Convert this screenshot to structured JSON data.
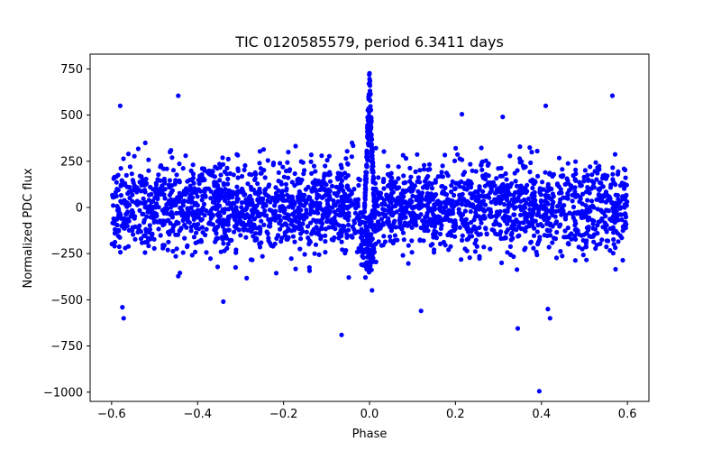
{
  "chart_data": {
    "type": "scatter",
    "title": "TIC 0120585579, period 6.3411 days",
    "xlabel": "Phase",
    "ylabel": "Normalized PDC flux",
    "xlim": [
      -0.65,
      0.65
    ],
    "ylim": [
      -1050,
      830
    ],
    "xticks": [
      -0.6,
      -0.4,
      -0.2,
      0.0,
      0.2,
      0.4,
      0.6
    ],
    "xtick_labels": [
      "−0.6",
      "−0.4",
      "−0.2",
      "0.0",
      "0.2",
      "0.4",
      "0.6"
    ],
    "yticks": [
      -1000,
      -750,
      -500,
      -250,
      0,
      250,
      500,
      750
    ],
    "ytick_labels": [
      "−1000",
      "−750",
      "−500",
      "−250",
      "0",
      "250",
      "500",
      "750"
    ],
    "grid": false,
    "series": [
      {
        "name": "Normalized PDC flux",
        "color": "#0000ff",
        "marker": "circle",
        "phase_range": [
          -0.6,
          0.6
        ],
        "bulk_sd": 120,
        "bulk_range": [
          -430,
          400
        ],
        "flare": {
          "center": 0.0,
          "half_width": 0.012,
          "peak": 790
        },
        "dip": {
          "center": -0.02,
          "to": 0.012,
          "depth": -330
        },
        "outliers": [
          {
            "x": -0.58,
            "y": 550
          },
          {
            "x": -0.445,
            "y": 605
          },
          {
            "x": 0.565,
            "y": 605
          },
          {
            "x": 0.41,
            "y": 550
          },
          {
            "x": 0.215,
            "y": 505
          },
          {
            "x": 0.31,
            "y": 490
          },
          {
            "x": -0.575,
            "y": -540
          },
          {
            "x": -0.572,
            "y": -600
          },
          {
            "x": -0.34,
            "y": -510
          },
          {
            "x": -0.065,
            "y": -690
          },
          {
            "x": 0.12,
            "y": -560
          },
          {
            "x": 0.345,
            "y": -655
          },
          {
            "x": 0.42,
            "y": -600
          },
          {
            "x": 0.415,
            "y": -550
          },
          {
            "x": 0.395,
            "y": -995
          }
        ]
      }
    ]
  }
}
